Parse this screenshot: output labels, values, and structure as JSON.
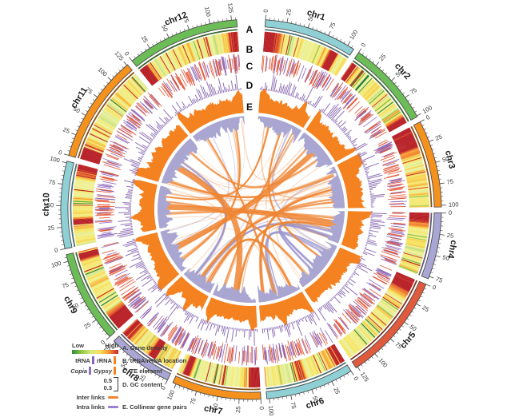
{
  "figure": {
    "track_letters": [
      "A",
      "B",
      "C",
      "D",
      "E"
    ]
  },
  "chart_data": {
    "type": "circos",
    "unit_tick_interval": 25,
    "chromosomes": [
      {
        "name": "chr1",
        "length": 108,
        "color": "#8fd0d4",
        "hotspots": [
          {
            "at": 0.05,
            "w": 0.1
          },
          {
            "at": 0.82,
            "w": 0.05
          }
        ]
      },
      {
        "name": "chr2",
        "length": 101,
        "color": "#6cbd57",
        "hotspots": [
          {
            "at": 0.03,
            "w": 0.06
          },
          {
            "at": 0.96,
            "w": 0.04
          }
        ]
      },
      {
        "name": "chr3",
        "length": 102,
        "color": "#f5921e",
        "hotspots": [
          {
            "at": 0.1,
            "w": 0.16
          }
        ]
      },
      {
        "name": "chr4",
        "length": 78,
        "color": "#aaa6d4",
        "hotspots": [
          {
            "at": 0.05,
            "w": 0.11
          }
        ]
      },
      {
        "name": "chr5",
        "length": 127,
        "color": "#e05a3d",
        "hotspots": [
          {
            "at": 0.06,
            "w": 0.09
          }
        ]
      },
      {
        "name": "chr6",
        "length": 103,
        "color": "#8fd0d4",
        "hotspots": [
          {
            "at": 0.04,
            "w": 0.08
          },
          {
            "at": 0.55,
            "w": 0.04
          }
        ]
      },
      {
        "name": "chr7",
        "length": 104,
        "color": "#f5921e",
        "hotspots": [
          {
            "at": 0.05,
            "w": 0.1
          },
          {
            "at": 0.9,
            "w": 0.05
          }
        ]
      },
      {
        "name": "chr8",
        "length": 77,
        "color": "#aaa6d4",
        "hotspots": [
          {
            "at": 0.38,
            "w": 0.08
          },
          {
            "at": 0.92,
            "w": 0.09
          }
        ]
      },
      {
        "name": "chr9",
        "length": 108,
        "color": "#6cbd57",
        "hotspots": [
          {
            "at": 0.08,
            "w": 0.13
          },
          {
            "at": 0.95,
            "w": 0.05
          }
        ]
      },
      {
        "name": "chr10",
        "length": 102,
        "color": "#8fd0d4",
        "hotspots": [
          {
            "at": 0.95,
            "w": 0.07
          },
          {
            "at": 0.3,
            "w": 0.04
          }
        ]
      },
      {
        "name": "chr11",
        "length": 126,
        "color": "#f5921e",
        "hotspots": [
          {
            "at": 0.04,
            "w": 0.09
          }
        ]
      },
      {
        "name": "chr12",
        "length": 131,
        "color": "#6cbd57",
        "hotspots": [
          {
            "at": 0.03,
            "w": 0.07
          },
          {
            "at": 0.95,
            "w": 0.05
          }
        ]
      }
    ],
    "tracks": [
      {
        "id": "A",
        "label": "Gene density",
        "type": "heatmap",
        "palette": [
          "#1e7a34",
          "#7dbf45",
          "#c8e07e",
          "#eef3a0",
          "#f7e35c",
          "#f59331",
          "#d94a2b",
          "#b71f25"
        ]
      },
      {
        "id": "B",
        "label": "tRNA/rRNA location",
        "type": "ticks",
        "colors": {
          "tRNA": "#8a64b8",
          "rRNA": "#e2502d"
        }
      },
      {
        "id": "C",
        "label": "TE element",
        "type": "histogram",
        "colors": {
          "Copia": "#8f72b5",
          "Gypsy": "#f58220"
        }
      },
      {
        "id": "D",
        "label": "GC content",
        "type": "area",
        "range": [
          0.3,
          0.5
        ],
        "color": "#a9a6d2"
      },
      {
        "id": "E",
        "label": "Collinear gene pairs",
        "type": "links",
        "colors": {
          "inter": "#ef8532",
          "intra": "#9b97cf"
        }
      }
    ]
  },
  "legend": {
    "gene_density": {
      "low": "Low",
      "high": "High",
      "label": "A. Gene density",
      "gradient": [
        "#2e8b3d",
        "#8dc63f",
        "#d7e87e",
        "#f7e35c",
        "#f59331",
        "#c5232b"
      ]
    },
    "trna_rrna": {
      "trna_label": "tRNA",
      "trna_color": "#8a64b8",
      "rrna_label": "rRNA",
      "rrna_color": "#f58220",
      "label": "B. tRNA/rRNA location"
    },
    "te": {
      "copia_label": "Copia",
      "copia_color": "#8f72b5",
      "gypsy_label": "Gypsy",
      "gypsy_color": "#f58220",
      "label": "C. TE element"
    },
    "gc": {
      "max": "0.5",
      "min": "0.3",
      "label": "D. GC content"
    },
    "links": {
      "inter_label": "Inter links",
      "inter_color": "#ef8532",
      "intra_label": "Intra links",
      "intra_color": "#9b7fd4",
      "label": "E. Collinear gene pairs"
    }
  }
}
